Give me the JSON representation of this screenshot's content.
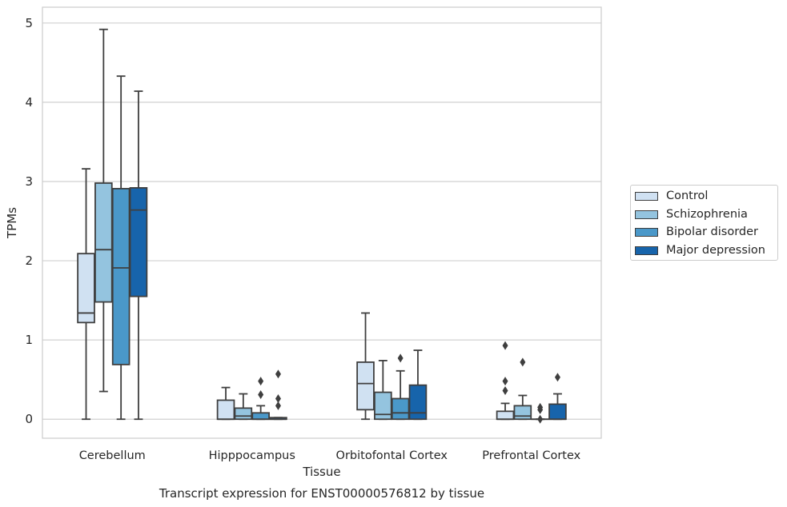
{
  "chart_data": {
    "type": "box",
    "title": "Transcript expression for ENST00000576812 by tissue",
    "xlabel": "Tissue",
    "ylabel": "TPMs",
    "ylim": [
      -0.24,
      5.2
    ],
    "yticks": [
      0,
      1,
      2,
      3,
      4,
      5
    ],
    "grid": true,
    "legend_position": "right",
    "categories": [
      "Cerebellum",
      "Hipppocampus",
      "Orbitofontal Cortex",
      "Prefrontal Cortex"
    ],
    "series": [
      {
        "name": "Control",
        "color": "#d0e1f2",
        "boxes": [
          {
            "whislo": 0.0,
            "q1": 1.22,
            "med": 1.34,
            "q3": 2.09,
            "whishi": 3.16,
            "fliers": []
          },
          {
            "whislo": 0.0,
            "q1": 0.0,
            "med": 0.0,
            "q3": 0.24,
            "whishi": 0.4,
            "fliers": []
          },
          {
            "whislo": 0.0,
            "q1": 0.12,
            "med": 0.45,
            "q3": 0.72,
            "whishi": 1.34,
            "fliers": []
          },
          {
            "whislo": 0.0,
            "q1": 0.0,
            "med": 0.0,
            "q3": 0.1,
            "whishi": 0.2,
            "fliers": [
              0.36,
              0.48,
              0.93
            ]
          }
        ]
      },
      {
        "name": "Schizophrenia",
        "color": "#94c4df",
        "boxes": [
          {
            "whislo": 0.35,
            "q1": 1.48,
            "med": 2.14,
            "q3": 2.98,
            "whishi": 4.92,
            "fliers": []
          },
          {
            "whislo": 0.0,
            "q1": 0.0,
            "med": 0.04,
            "q3": 0.14,
            "whishi": 0.32,
            "fliers": []
          },
          {
            "whislo": 0.0,
            "q1": 0.0,
            "med": 0.06,
            "q3": 0.34,
            "whishi": 0.74,
            "fliers": []
          },
          {
            "whislo": 0.0,
            "q1": 0.0,
            "med": 0.04,
            "q3": 0.17,
            "whishi": 0.3,
            "fliers": [
              0.72
            ]
          }
        ]
      },
      {
        "name": "Bipolar disorder",
        "color": "#4a98c9",
        "boxes": [
          {
            "whislo": 0.0,
            "q1": 0.69,
            "med": 1.91,
            "q3": 2.91,
            "whishi": 4.33,
            "fliers": []
          },
          {
            "whislo": 0.0,
            "q1": 0.0,
            "med": 0.0,
            "q3": 0.08,
            "whishi": 0.17,
            "fliers": [
              0.31,
              0.48
            ]
          },
          {
            "whislo": 0.0,
            "q1": 0.0,
            "med": 0.08,
            "q3": 0.26,
            "whishi": 0.61,
            "fliers": [
              0.77
            ]
          },
          {
            "whislo": 0.0,
            "q1": 0.0,
            "med": 0.0,
            "q3": 0.0,
            "whishi": 0.0,
            "fliers": [
              0.0,
              0.12,
              0.15
            ]
          }
        ]
      },
      {
        "name": "Major depression",
        "color": "#1764ab",
        "boxes": [
          {
            "whislo": 0.0,
            "q1": 1.55,
            "med": 2.64,
            "q3": 2.92,
            "whishi": 4.14,
            "fliers": []
          },
          {
            "whislo": 0.0,
            "q1": 0.0,
            "med": 0.0,
            "q3": 0.02,
            "whishi": 0.02,
            "fliers": [
              0.17,
              0.26,
              0.57
            ]
          },
          {
            "whislo": 0.0,
            "q1": 0.0,
            "med": 0.08,
            "q3": 0.43,
            "whishi": 0.87,
            "fliers": []
          },
          {
            "whislo": 0.0,
            "q1": 0.0,
            "med": 0.0,
            "q3": 0.19,
            "whishi": 0.32,
            "fliers": [
              0.53
            ]
          }
        ]
      }
    ]
  }
}
